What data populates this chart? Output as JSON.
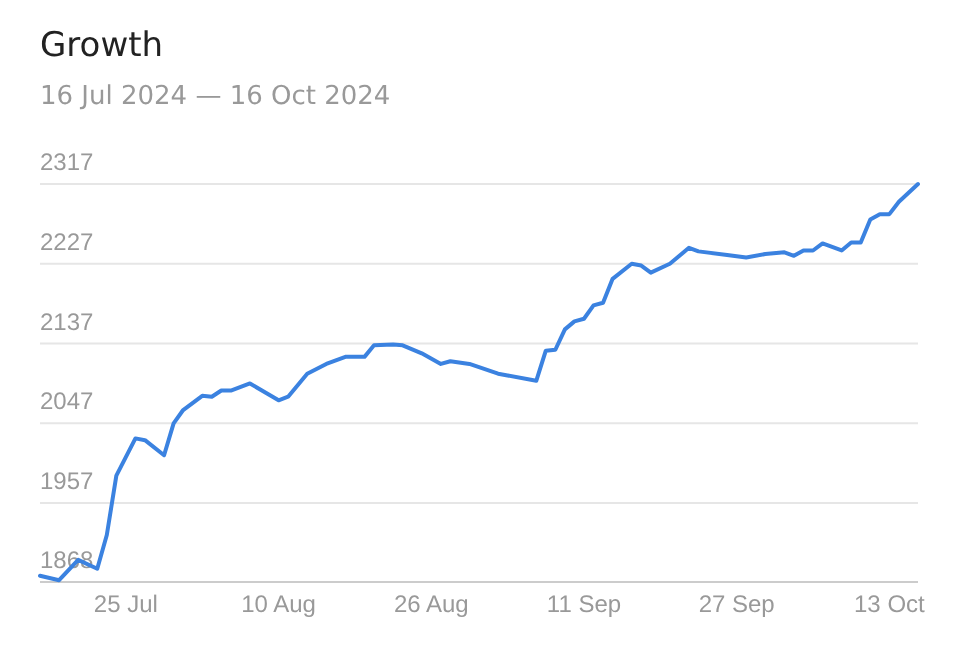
{
  "chart_data": {
    "type": "line",
    "title": "Growth",
    "subtitle": "16 Jul 2024 — 16 Oct 2024",
    "x": [
      "2024-07-16",
      "2024-07-18",
      "2024-07-20",
      "2024-07-22",
      "2024-07-23",
      "2024-07-24",
      "2024-07-26",
      "2024-07-27",
      "2024-07-29",
      "2024-07-30",
      "2024-07-31",
      "2024-08-02",
      "2024-08-03",
      "2024-08-04",
      "2024-08-05",
      "2024-08-07",
      "2024-08-10",
      "2024-08-11",
      "2024-08-13",
      "2024-08-15",
      "2024-08-17",
      "2024-08-19",
      "2024-08-20",
      "2024-08-22",
      "2024-08-23",
      "2024-08-25",
      "2024-08-27",
      "2024-08-28",
      "2024-08-30",
      "2024-09-02",
      "2024-09-03",
      "2024-09-06",
      "2024-09-07",
      "2024-09-08",
      "2024-09-09",
      "2024-09-10",
      "2024-09-11",
      "2024-09-12",
      "2024-09-13",
      "2024-09-14",
      "2024-09-16",
      "2024-09-17",
      "2024-09-18",
      "2024-09-20",
      "2024-09-22",
      "2024-09-23",
      "2024-09-26",
      "2024-09-28",
      "2024-09-30",
      "2024-10-02",
      "2024-10-03",
      "2024-10-04",
      "2024-10-05",
      "2024-10-06",
      "2024-10-08",
      "2024-10-09",
      "2024-10-10",
      "2024-10-11",
      "2024-10-12",
      "2024-10-13",
      "2024-10-14",
      "2024-10-16"
    ],
    "series": [
      {
        "color": "#3b82e0",
        "values": [
          1875,
          1870,
          1893,
          1883,
          1921,
          1988,
          2030,
          2028,
          2011,
          2047,
          2062,
          2078,
          2077,
          2084,
          2084,
          2092,
          2073,
          2077,
          2103,
          2114,
          2122,
          2122,
          2135,
          2136,
          2135,
          2126,
          2114,
          2117,
          2114,
          2103,
          2101,
          2095,
          2129,
          2130,
          2153,
          2162,
          2165,
          2180,
          2183,
          2210,
          2227,
          2225,
          2217,
          2227,
          2245,
          2241,
          2237,
          2234,
          2238,
          2240,
          2236,
          2242,
          2242,
          2250,
          2242,
          2251,
          2251,
          2277,
          2283,
          2283,
          2297,
          2317
        ]
      }
    ],
    "xlim": [
      "2024-07-16",
      "2024-10-16"
    ],
    "xticks": [
      {
        "value": "2024-07-25",
        "label": "25 Jul"
      },
      {
        "value": "2024-08-10",
        "label": "10 Aug"
      },
      {
        "value": "2024-08-26",
        "label": "26 Aug"
      },
      {
        "value": "2024-09-11",
        "label": "11 Sep"
      },
      {
        "value": "2024-09-27",
        "label": "27 Sep"
      },
      {
        "value": "2024-10-13",
        "label": "13 Oct"
      }
    ],
    "ylim": [
      1868,
      2317
    ],
    "yticks": [
      1868,
      1957,
      2047,
      2137,
      2227,
      2317
    ],
    "grid": "y",
    "marker": "none",
    "line_style": "solid"
  }
}
